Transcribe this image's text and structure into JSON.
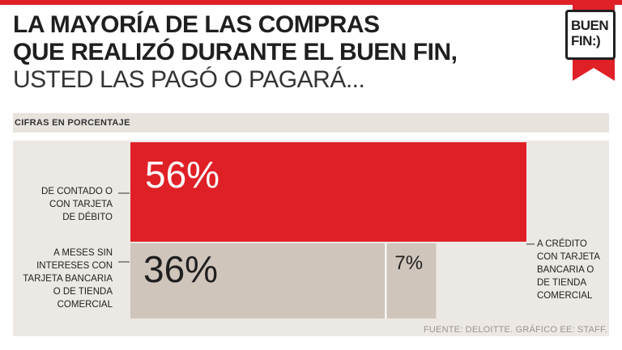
{
  "header": {
    "title_line1": "LA MAYORÍA DE LAS COMPRAS",
    "title_line2": "QUE REALIZÓ DURANTE EL BUEN FIN,",
    "title_line3": "USTED LAS PAGÓ O PAGARÁ...",
    "subtitle": "CIFRAS EN PORCENTAJE",
    "logo_line1": "BUEN",
    "logo_line2": "FIN:)",
    "source": "FUENTE: DELOITTE. GRÁFICO EE: STAFF."
  },
  "colors": {
    "red": "#e02027",
    "gray": "#cfc5bb",
    "band": "#e8e3dd",
    "dark": "#1f1f1f"
  },
  "chart_data": {
    "type": "bar",
    "title": "LA MAYORÍA DE LAS COMPRAS QUE REALIZÓ DURANTE EL BUEN FIN, USTED LAS PAGÓ O PAGARÁ...",
    "subtitle": "CIFRAS EN PORCENTAJE",
    "unit": "%",
    "categories": [
      "DE CONTADO O CON TARJETA DE DÉBITO",
      "A MESES SIN INTERESES CON TARJETA BANCARIA O DE TIENDA COMERCIAL",
      "A CRÉDITO CON TARJETA BANCARIA O DE TIENDA COMERCIAL"
    ],
    "values": [
      56,
      36,
      7
    ],
    "value_labels": [
      "56%",
      "36%",
      "7%"
    ],
    "label_lines": [
      [
        "DE CONTADO O",
        "CON TARJETA",
        "DE DÉBITO"
      ],
      [
        "A MESES SIN",
        "INTERESES CON",
        "TARJETA BANCARIA",
        "O DE TIENDA",
        "COMERCIAL"
      ],
      [
        "A CRÉDITO",
        "CON TARJETA",
        "BANCARIA O",
        "DE TIENDA",
        "COMERCIAL"
      ]
    ],
    "source": "FUENTE: DELOITTE. GRÁFICO EE: STAFF."
  }
}
